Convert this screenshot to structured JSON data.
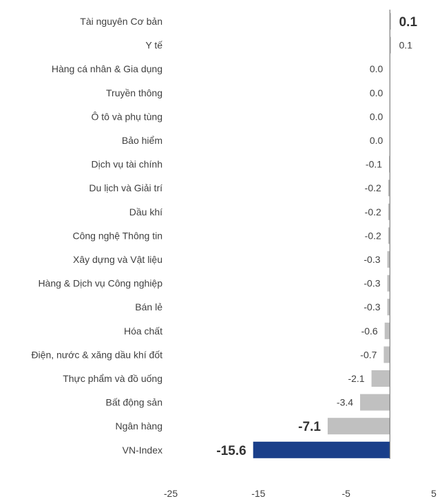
{
  "chart_data": {
    "type": "bar",
    "orientation": "horizontal",
    "title": "",
    "xlabel": "",
    "ylabel": "",
    "xlim": [
      -25,
      5
    ],
    "x_ticks": [
      "-25",
      "-15",
      "-5",
      "5"
    ],
    "grid": false,
    "legend": "none",
    "categories": [
      "Tài nguyên Cơ bản",
      "Y tế",
      "Hàng cá nhân & Gia dụng",
      "Truyền thông",
      "Ô tô và phụ tùng",
      "Bảo hiểm",
      "Dịch vụ tài chính",
      "Du lịch và Giải trí",
      "Dầu khí",
      "Công nghệ Thông tin",
      "Xây dựng và Vật liệu",
      "Hàng & Dịch vụ Công nghiệp",
      "Bán lẻ",
      "Hóa chất",
      "Điện, nước & xăng dầu khí đốt",
      "Thực phẩm và đồ uống",
      "Bất động sản",
      "Ngân hàng",
      "VN-Index"
    ],
    "values": [
      0.1,
      0.1,
      0.0,
      0.0,
      0.0,
      0.0,
      -0.1,
      -0.2,
      -0.2,
      -0.2,
      -0.3,
      -0.3,
      -0.3,
      -0.6,
      -0.7,
      -2.1,
      -3.4,
      -7.1,
      -15.6
    ],
    "value_labels": [
      "0.1",
      "0.1",
      "0.0",
      "0.0",
      "0.0",
      "0.0",
      "-0.1",
      "-0.2",
      "-0.2",
      "-0.2",
      "-0.3",
      "-0.3",
      "-0.3",
      "-0.6",
      "-0.7",
      "-2.1",
      "-3.4",
      "-7.1",
      "-15.6"
    ],
    "bold_labels": [
      0,
      17,
      18
    ],
    "highlight_index": 18,
    "colors": {
      "bar": "#c0c0c0",
      "highlight": "#1a3f8a",
      "axis": "#7f7f7f",
      "text": "#404040"
    }
  }
}
